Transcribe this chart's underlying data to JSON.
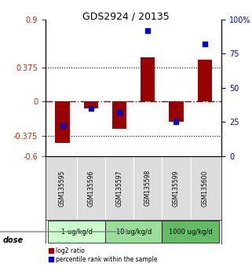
{
  "title": "GDS2924 / 20135",
  "samples": [
    "GSM135595",
    "GSM135596",
    "GSM135597",
    "GSM135598",
    "GSM135599",
    "GSM135600"
  ],
  "log2_ratio": [
    -0.46,
    -0.08,
    -0.3,
    0.48,
    -0.22,
    0.46
  ],
  "percentile_rank": [
    22,
    35,
    32,
    92,
    25,
    82
  ],
  "bar_color": "#990000",
  "dot_color": "#0000cc",
  "ylim_left": [
    -0.6,
    0.9
  ],
  "ylim_right": [
    0,
    100
  ],
  "yticks_left": [
    -0.6,
    -0.375,
    0,
    0.375,
    0.9
  ],
  "yticks_right": [
    0,
    25,
    50,
    75,
    100
  ],
  "ytick_labels_left": [
    "-0.6",
    "-0.375",
    "0",
    "0.375",
    "0.9"
  ],
  "ytick_labels_right": [
    "0",
    "25",
    "50",
    "75",
    "100%"
  ],
  "hline_dotted": [
    0.375,
    -0.375
  ],
  "dose_groups": [
    {
      "label": "1 ug/kg/d",
      "indices": [
        0,
        1
      ],
      "color": "#ccffcc"
    },
    {
      "label": "10 ug/kg/d",
      "indices": [
        2,
        3
      ],
      "color": "#99dd99"
    },
    {
      "label": "1000 ug/kg/d",
      "indices": [
        4,
        5
      ],
      "color": "#66bb66"
    }
  ],
  "dose_label": "dose",
  "legend_bar_label": "log2 ratio",
  "legend_dot_label": "percentile rank within the sample",
  "background_color": "#ffffff",
  "plot_bg_color": "#ffffff",
  "label_color_left": "#cc2200",
  "label_color_right": "#0000cc"
}
